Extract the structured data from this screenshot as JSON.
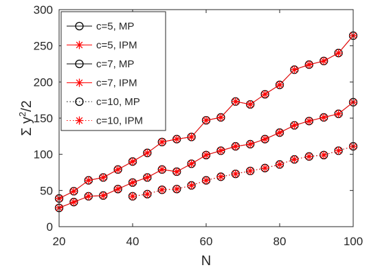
{
  "chart_data": {
    "type": "line",
    "xlabel": "N",
    "ylabel_prefix": "Σ y",
    "ylabel_sup": "2",
    "ylabel_suffix": "/2",
    "xlim": [
      20,
      100
    ],
    "ylim": [
      0,
      300
    ],
    "xticks": [
      20,
      40,
      60,
      80,
      100
    ],
    "yticks": [
      0,
      50,
      100,
      150,
      200,
      250,
      300
    ],
    "grid": false,
    "legend_position": "top-left",
    "x": [
      20,
      24,
      28,
      32,
      36,
      40,
      44,
      48,
      52,
      56,
      60,
      64,
      68,
      72,
      76,
      80,
      84,
      88,
      92,
      96,
      100
    ],
    "series": [
      {
        "name": "c=5, MP",
        "color": "#000000",
        "marker": "circle",
        "line": "solid",
        "values": [
          39,
          49,
          64,
          68,
          79,
          90,
          102,
          117,
          121,
          124,
          147,
          151,
          173,
          169,
          183,
          196,
          217,
          224,
          229,
          240,
          264
        ]
      },
      {
        "name": "c=5, IPM",
        "color": "#ff0000",
        "marker": "star",
        "line": "solid",
        "values": [
          39,
          49,
          64,
          68,
          79,
          90,
          102,
          117,
          121,
          124,
          147,
          151,
          173,
          169,
          183,
          196,
          217,
          224,
          229,
          240,
          264
        ]
      },
      {
        "name": "c=7, MP",
        "color": "#000000",
        "marker": "circle",
        "line": "solid",
        "values": [
          26,
          34,
          42,
          43,
          52,
          61,
          68,
          79,
          76,
          87,
          99,
          105,
          111,
          114,
          121,
          130,
          140,
          146,
          151,
          156,
          172
        ]
      },
      {
        "name": "c=7, IPM",
        "color": "#ff0000",
        "marker": "star",
        "line": "solid",
        "values": [
          26,
          34,
          42,
          43,
          52,
          61,
          68,
          79,
          76,
          87,
          99,
          105,
          111,
          114,
          121,
          130,
          140,
          146,
          151,
          156,
          172
        ]
      },
      {
        "name": "c=10, MP",
        "color": "#000000",
        "marker": "circle",
        "line": "dotted",
        "values": [
          null,
          null,
          null,
          null,
          null,
          42,
          45,
          51,
          52,
          57,
          64,
          69,
          73,
          77,
          81,
          86,
          93,
          97,
          99,
          105,
          111
        ]
      },
      {
        "name": "c=10, IPM",
        "color": "#ff0000",
        "marker": "star",
        "line": "dotted",
        "values": [
          null,
          null,
          null,
          null,
          null,
          42,
          45,
          51,
          52,
          57,
          64,
          69,
          73,
          77,
          81,
          86,
          93,
          97,
          99,
          105,
          111
        ]
      }
    ]
  }
}
